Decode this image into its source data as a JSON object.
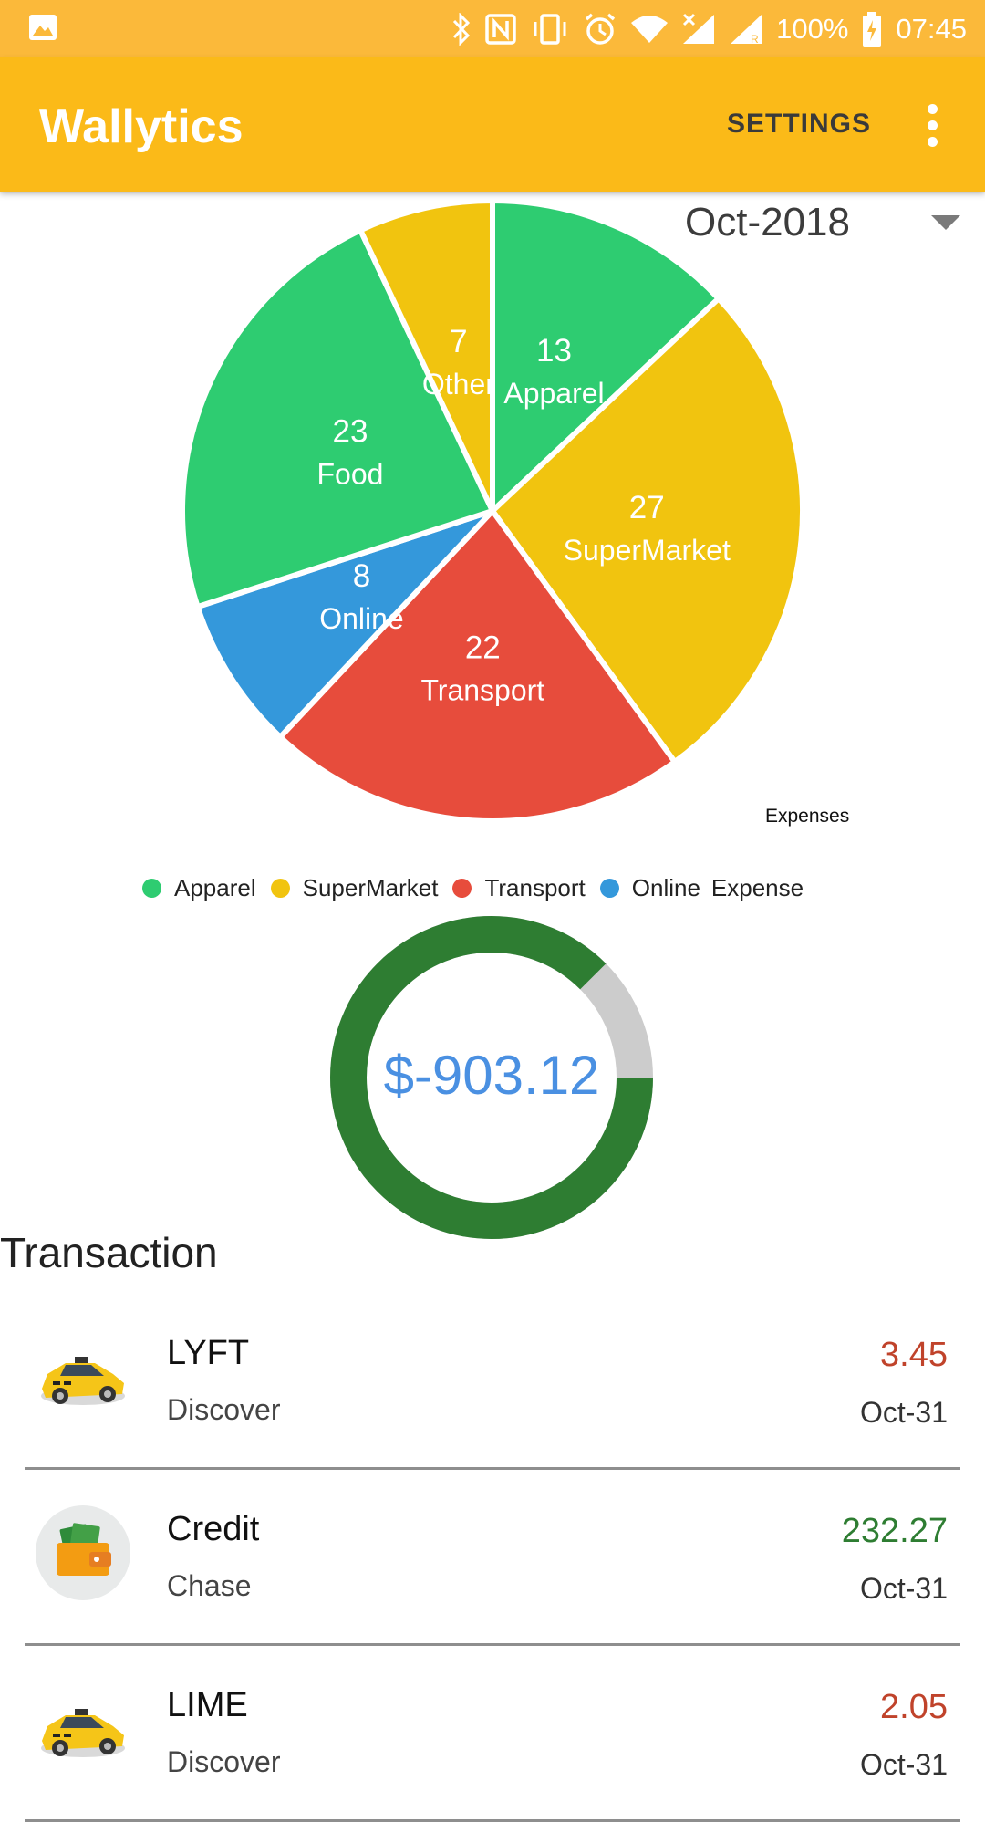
{
  "status_bar": {
    "battery": "100%",
    "time": "07:45",
    "icons": [
      "image-icon",
      "bluetooth-icon",
      "nfc-icon",
      "vibrate-icon",
      "alarm-icon",
      "wifi-icon",
      "no-signal-icon",
      "signal-roaming-icon",
      "battery-charging-icon"
    ]
  },
  "app_bar": {
    "title": "Wallytics",
    "settings_label": "SETTINGS",
    "overflow_icon": "more-vert-icon"
  },
  "month_selector": {
    "value": "Oct-2018",
    "icon": "dropdown-arrow-icon"
  },
  "colors": {
    "app_bar": "#fbba18",
    "status_bar": "#fbb93a",
    "green": "#2ecc71",
    "yellow": "#f1c40f",
    "red": "#e74c3c",
    "blue": "#3498db",
    "donut_fill": "#2e7d32",
    "donut_track": "#cccccc",
    "expense_amount": "#c0432b",
    "credit_amount": "#2e7d32"
  },
  "chart_data": [
    {
      "type": "pie",
      "description": "Expenses",
      "slices": [
        {
          "label": "Apparel",
          "value": 13,
          "color": "#2ecc71"
        },
        {
          "label": "SuperMarket",
          "value": 27,
          "color": "#f1c40f"
        },
        {
          "label": "Transport",
          "value": 22,
          "color": "#e74c3c"
        },
        {
          "label": "Online",
          "value": 8,
          "color": "#3498db"
        },
        {
          "label": "Food",
          "value": 23,
          "color": "#2ecc71"
        },
        {
          "label": "Other",
          "value": 7,
          "color": "#f1c40f"
        }
      ],
      "legend": [
        {
          "label": "Apparel",
          "color": "#2ecc71"
        },
        {
          "label": "SuperMarket",
          "color": "#f1c40f"
        },
        {
          "label": "Transport",
          "color": "#e74c3c"
        },
        {
          "label": "Online",
          "color": "#3498db"
        }
      ],
      "legend_extra": "Expense",
      "legend_position": "bottom"
    },
    {
      "type": "pie",
      "subtype": "donut",
      "center_label": "$-903.12",
      "fill_fraction": 0.875,
      "fill_color": "#2e7d32",
      "track_color": "#cccccc"
    }
  ],
  "transactions": {
    "title": "Transaction",
    "items": [
      {
        "name": "LYFT",
        "account": "Discover",
        "amount": "3.45",
        "date": "Oct-31",
        "type": "expense",
        "icon": "taxi-car-icon"
      },
      {
        "name": "Credit",
        "account": "Chase",
        "amount": "232.27",
        "date": "Oct-31",
        "type": "credit",
        "icon": "wallet-money-icon"
      },
      {
        "name": "LIME",
        "account": "Discover",
        "amount": "2.05",
        "date": "Oct-31",
        "type": "expense",
        "icon": "taxi-car-icon"
      }
    ]
  }
}
